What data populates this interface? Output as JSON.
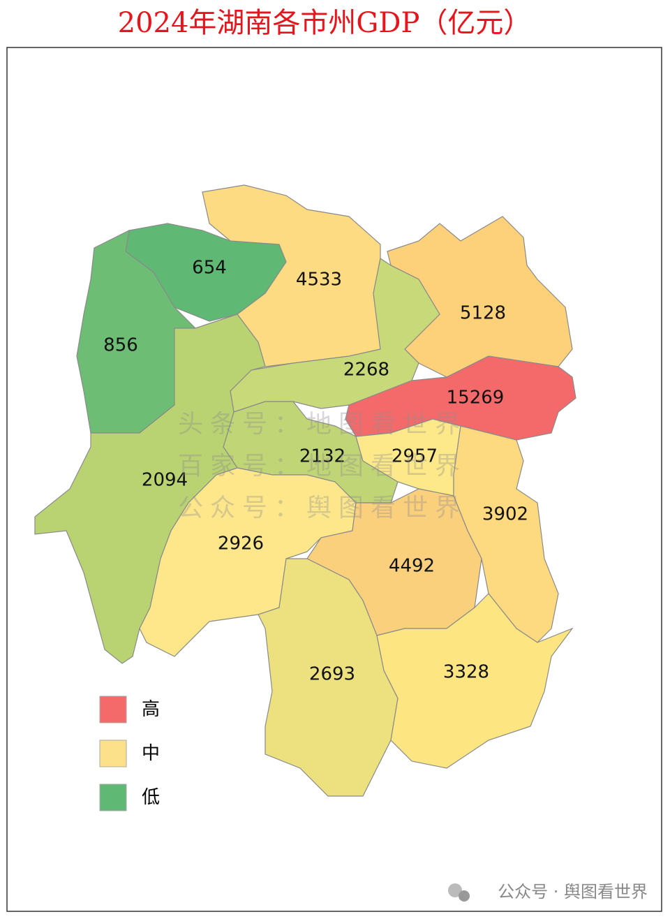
{
  "title": "2024年湖南各市州GDP（亿元）",
  "regions": [
    {
      "value": 654,
      "color": "#5fb874"
    },
    {
      "value": 856,
      "color": "#6dbd75"
    },
    {
      "value": 4533,
      "color": "#fddb82"
    },
    {
      "value": 5128,
      "color": "#fdd07a"
    },
    {
      "value": 2268,
      "color": "#c8d97a"
    },
    {
      "value": 15269,
      "color": "#f46a6a"
    },
    {
      "value": 2132,
      "color": "#c0d576"
    },
    {
      "value": 2957,
      "color": "#fde88a"
    },
    {
      "value": 2094,
      "color": "#b9d272"
    },
    {
      "value": 3902,
      "color": "#fdd97f"
    },
    {
      "value": 2926,
      "color": "#fde78a"
    },
    {
      "value": 4492,
      "color": "#fbd07c"
    },
    {
      "value": 2693,
      "color": "#ede07f"
    },
    {
      "value": 3328,
      "color": "#fde582"
    }
  ],
  "legend": [
    {
      "label": "高",
      "color": "#f46a6a"
    },
    {
      "label": "中",
      "color": "#fde18a"
    },
    {
      "label": "低",
      "color": "#5fb874"
    }
  ],
  "watermarks": [
    "头条号：地图看世界",
    "百家号：地图看世界",
    "公众号：舆图看世界"
  ],
  "footer": "公众号 · 舆图看世界"
}
